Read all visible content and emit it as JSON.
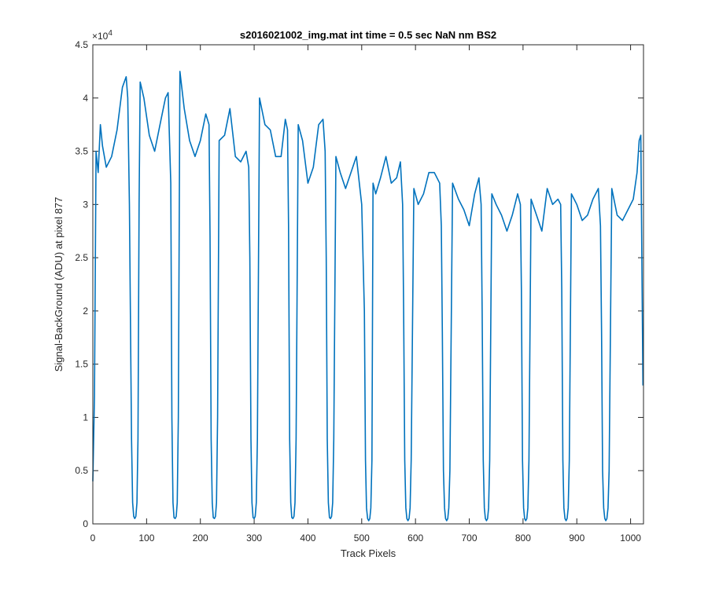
{
  "chart_data": {
    "type": "line",
    "title": "s2016021002_img.mat int time = 0.5 sec  NaN nm BS2",
    "xlabel": "Track Pixels",
    "ylabel": "Signal-BackGround (ADU) at pixel 877",
    "y_exponent_label": "×10",
    "y_exponent_power": "4",
    "xlim": [
      0,
      1024
    ],
    "ylim": [
      0,
      45000
    ],
    "x_ticks": [
      0,
      100,
      200,
      300,
      400,
      500,
      600,
      700,
      800,
      900,
      1000
    ],
    "x_tick_labels": [
      "0",
      "100",
      "200",
      "300",
      "400",
      "500",
      "600",
      "700",
      "800",
      "900",
      "1000"
    ],
    "y_ticks": [
      0,
      5000,
      10000,
      15000,
      20000,
      25000,
      30000,
      35000,
      40000,
      45000
    ],
    "y_tick_labels": [
      "0",
      "0.5",
      "1",
      "1.5",
      "2",
      "2.5",
      "3",
      "3.5",
      "4",
      "4.5"
    ],
    "grid": false,
    "line_color": "#0072BD",
    "series": [
      {
        "x": [
          0,
          3,
          6,
          10,
          14,
          18,
          25,
          35,
          45,
          55,
          62,
          65,
          68,
          72,
          74,
          76,
          78,
          80,
          82,
          84,
          86,
          88,
          95,
          105,
          115,
          125,
          135,
          140,
          145,
          147,
          149,
          151,
          153,
          155,
          157,
          159,
          162,
          170,
          180,
          190,
          200,
          210,
          216,
          218,
          220,
          222,
          224,
          226,
          228,
          230,
          232,
          235,
          245,
          255,
          265,
          275,
          285,
          290,
          292,
          294,
          296,
          298,
          300,
          302,
          304,
          306,
          310,
          320,
          330,
          340,
          350,
          358,
          362,
          364,
          366,
          368,
          370,
          372,
          374,
          376,
          378,
          382,
          390,
          400,
          410,
          420,
          428,
          432,
          434,
          436,
          438,
          440,
          442,
          444,
          446,
          448,
          452,
          460,
          470,
          480,
          490,
          500,
          505,
          507,
          509,
          511,
          513,
          515,
          517,
          519,
          521,
          526,
          535,
          545,
          555,
          565,
          572,
          576,
          578,
          580,
          582,
          584,
          586,
          588,
          590,
          592,
          597,
          605,
          615,
          625,
          635,
          645,
          648,
          650,
          652,
          654,
          656,
          658,
          660,
          662,
          664,
          669,
          680,
          690,
          700,
          710,
          718,
          722,
          724,
          726,
          728,
          730,
          732,
          734,
          736,
          738,
          742,
          750,
          760,
          770,
          780,
          790,
          795,
          797,
          799,
          801,
          803,
          805,
          807,
          809,
          811,
          815,
          825,
          835,
          845,
          855,
          865,
          870,
          872,
          874,
          876,
          878,
          880,
          882,
          884,
          886,
          890,
          900,
          910,
          920,
          930,
          940,
          944,
          946,
          948,
          950,
          952,
          954,
          956,
          958,
          960,
          965,
          975,
          985,
          995,
          1005,
          1012,
          1016,
          1019,
          1021,
          1023
        ],
        "y": [
          4000,
          12000,
          35000,
          33000,
          37500,
          35500,
          33500,
          34500,
          37000,
          41000,
          42000,
          40000,
          30000,
          8000,
          2000,
          700,
          500,
          700,
          2000,
          8000,
          30000,
          41500,
          40000,
          36500,
          35000,
          37500,
          40000,
          40500,
          32000,
          10000,
          2000,
          600,
          500,
          700,
          2000,
          10000,
          42500,
          39000,
          36000,
          34500,
          36000,
          38500,
          37500,
          27000,
          8000,
          2000,
          600,
          500,
          700,
          2000,
          10000,
          36000,
          36500,
          39000,
          34500,
          34000,
          35000,
          33500,
          25000,
          8000,
          2000,
          600,
          500,
          700,
          2000,
          8000,
          40000,
          37500,
          37000,
          34500,
          34500,
          38000,
          37000,
          28000,
          8000,
          2000,
          600,
          500,
          700,
          2000,
          8000,
          37500,
          36000,
          32000,
          33500,
          37500,
          38000,
          35000,
          25000,
          8000,
          2000,
          600,
          500,
          700,
          2000,
          8000,
          34500,
          33000,
          31500,
          33000,
          34500,
          30000,
          20000,
          6000,
          1500,
          500,
          300,
          500,
          1500,
          6000,
          32000,
          31000,
          32500,
          34500,
          32000,
          32500,
          34000,
          30000,
          20000,
          6000,
          1500,
          500,
          300,
          500,
          1500,
          6000,
          31500,
          30000,
          31000,
          33000,
          33000,
          32000,
          28000,
          18000,
          5000,
          1500,
          500,
          300,
          500,
          1500,
          5000,
          32000,
          30500,
          29500,
          28000,
          31000,
          32500,
          30000,
          20000,
          6000,
          1500,
          500,
          300,
          500,
          1500,
          6000,
          31000,
          30000,
          29000,
          27500,
          29000,
          31000,
          30000,
          22000,
          6000,
          1500,
          500,
          300,
          500,
          1500,
          6000,
          30500,
          29000,
          27500,
          31500,
          30000,
          30500,
          30000,
          22000,
          6000,
          1500,
          500,
          300,
          500,
          1500,
          6000,
          31000,
          30000,
          28500,
          29000,
          30500,
          31500,
          28000,
          18000,
          5000,
          1500,
          500,
          300,
          500,
          1500,
          5000,
          31500,
          29000,
          28500,
          29500,
          30500,
          33000,
          36000,
          36500,
          25000,
          13000
        ]
      }
    ]
  }
}
